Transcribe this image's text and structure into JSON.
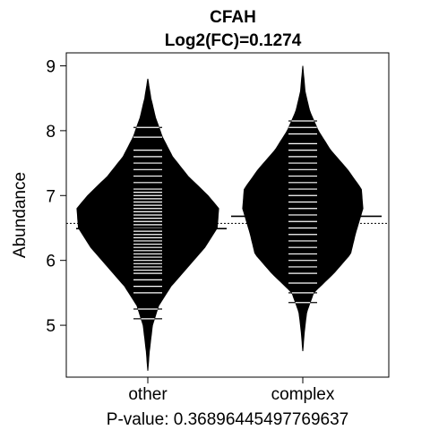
{
  "chart_data": {
    "type": "beanplot",
    "title": "CFAH",
    "subtitle": "Log2(FC)=0.1274",
    "ylabel": "Abundance",
    "xlabel": "P-value: 0.36896445497769637",
    "ylim": [
      4.2,
      9.2
    ],
    "yticks": [
      5,
      6,
      7,
      8,
      9
    ],
    "categories": [
      "other",
      "complex"
    ],
    "overall_mean": 6.57,
    "groups": [
      {
        "name": "other",
        "mean": 6.49,
        "range": [
          4.3,
          8.8
        ],
        "density": [
          [
            4.3,
            0.0
          ],
          [
            4.6,
            0.02
          ],
          [
            5.0,
            0.06
          ],
          [
            5.3,
            0.14
          ],
          [
            5.6,
            0.3
          ],
          [
            5.9,
            0.52
          ],
          [
            6.2,
            0.74
          ],
          [
            6.5,
            0.9
          ],
          [
            6.8,
            0.92
          ],
          [
            7.0,
            0.78
          ],
          [
            7.3,
            0.52
          ],
          [
            7.6,
            0.32
          ],
          [
            7.9,
            0.19
          ],
          [
            8.2,
            0.1
          ],
          [
            8.5,
            0.04
          ],
          [
            8.8,
            0.0
          ]
        ],
        "observations": [
          5.1,
          5.25,
          5.5,
          5.6,
          5.7,
          5.8,
          5.85,
          5.9,
          5.95,
          6.0,
          6.05,
          6.1,
          6.15,
          6.2,
          6.25,
          6.3,
          6.35,
          6.4,
          6.45,
          6.5,
          6.55,
          6.6,
          6.65,
          6.7,
          6.75,
          6.8,
          6.85,
          6.9,
          6.95,
          7.0,
          7.05,
          7.1,
          7.2,
          7.3,
          7.4,
          7.5,
          7.6,
          7.7,
          7.9,
          8.05
        ]
      },
      {
        "name": "complex",
        "mean": 6.68,
        "range": [
          4.6,
          9.0
        ],
        "density": [
          [
            4.6,
            0.0
          ],
          [
            4.9,
            0.02
          ],
          [
            5.2,
            0.05
          ],
          [
            5.5,
            0.14
          ],
          [
            5.8,
            0.4
          ],
          [
            6.1,
            0.62
          ],
          [
            6.4,
            0.68
          ],
          [
            6.8,
            0.78
          ],
          [
            7.1,
            0.76
          ],
          [
            7.4,
            0.58
          ],
          [
            7.7,
            0.36
          ],
          [
            8.0,
            0.2
          ],
          [
            8.3,
            0.09
          ],
          [
            8.6,
            0.03
          ],
          [
            9.0,
            0.0
          ]
        ],
        "observations": [
          5.35,
          5.5,
          5.65,
          5.8,
          5.9,
          6.0,
          6.1,
          6.2,
          6.3,
          6.4,
          6.5,
          6.6,
          6.7,
          6.8,
          6.9,
          7.0,
          7.1,
          7.2,
          7.3,
          7.4,
          7.5,
          7.6,
          7.7,
          7.8,
          7.95,
          8.05,
          8.15
        ]
      }
    ]
  }
}
